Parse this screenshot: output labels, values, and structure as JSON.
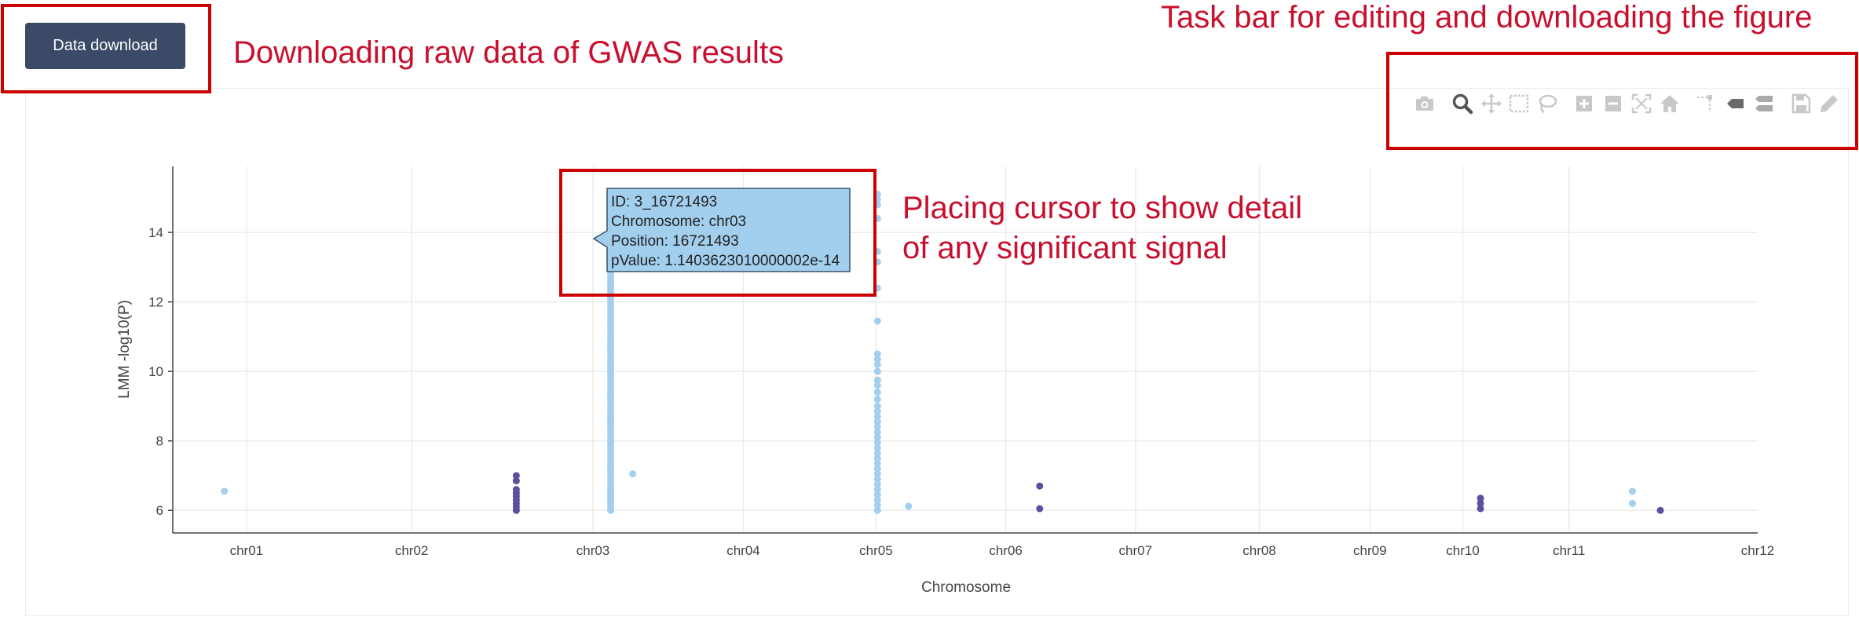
{
  "download_button": {
    "label": "Data download"
  },
  "annotations": {
    "download": "Downloading raw data of GWAS results",
    "taskbar": "Task bar for editing and downloading the figure",
    "cursor_line1": "Placing cursor to show detail",
    "cursor_line2": "of any significant signal"
  },
  "toolbar": {
    "icons": [
      "camera-icon",
      "zoom-icon",
      "pan-icon",
      "box-select-icon",
      "lasso-select-icon",
      "zoom-in-icon",
      "zoom-out-icon",
      "autoscale-icon",
      "reset-axes-icon",
      "spike-lines-icon",
      "hover-closest-icon",
      "hover-compare-icon",
      "save-icon",
      "edit-icon"
    ],
    "active": "zoom-icon"
  },
  "tooltip": {
    "id": "ID: 3_16721493",
    "chromosome": "Chromosome: chr03",
    "position": "Position: 16721493",
    "pvalue": "pValue: 1.1403623010000002e-14"
  },
  "colors": {
    "odd_chr": "#a3cfee",
    "even_chr": "#5b4f9e",
    "button": "#3a4a67",
    "annotation": "#c8102e"
  },
  "chart_data": {
    "type": "scatter",
    "xlabel": "Chromosome",
    "ylabel": "LMM -log10(P)",
    "x_ticks": [
      "chr01",
      "chr02",
      "chr03",
      "chr04",
      "chr05",
      "chr06",
      "chr07",
      "chr08",
      "chr09",
      "chr10",
      "chr11",
      "chr12"
    ],
    "xlim": [
      0.0,
      12.0
    ],
    "ylim": [
      5.35,
      15.9
    ],
    "y_ticks": [
      6,
      8,
      10,
      12,
      14
    ],
    "grid": true,
    "series": [
      {
        "color": "odd",
        "points": [
          [
            0.35,
            6.55
          ],
          [
            2.97,
            6.0
          ],
          [
            2.97,
            6.1
          ],
          [
            2.97,
            6.2
          ],
          [
            2.97,
            6.3
          ],
          [
            2.97,
            6.4
          ],
          [
            2.97,
            6.5
          ],
          [
            2.97,
            6.6
          ],
          [
            2.97,
            6.7
          ],
          [
            2.97,
            6.8
          ],
          [
            2.97,
            6.9
          ],
          [
            2.97,
            7.0
          ],
          [
            2.97,
            7.1
          ],
          [
            2.97,
            7.2
          ],
          [
            2.97,
            7.3
          ],
          [
            2.97,
            7.4
          ],
          [
            2.97,
            7.5
          ],
          [
            2.97,
            7.6
          ],
          [
            2.97,
            7.7
          ],
          [
            2.97,
            7.8
          ],
          [
            2.97,
            7.9
          ],
          [
            2.97,
            8.0
          ],
          [
            2.97,
            8.1
          ],
          [
            2.97,
            8.2
          ],
          [
            2.97,
            8.3
          ],
          [
            2.97,
            8.4
          ],
          [
            2.97,
            8.5
          ],
          [
            2.97,
            8.6
          ],
          [
            2.97,
            8.7
          ],
          [
            2.97,
            8.8
          ],
          [
            2.97,
            8.9
          ],
          [
            2.97,
            9.0
          ],
          [
            2.97,
            9.1
          ],
          [
            2.97,
            9.2
          ],
          [
            2.97,
            9.3
          ],
          [
            2.97,
            9.4
          ],
          [
            2.97,
            9.5
          ],
          [
            2.97,
            9.6
          ],
          [
            2.97,
            9.7
          ],
          [
            2.97,
            9.8
          ],
          [
            2.97,
            9.9
          ],
          [
            2.97,
            10.0
          ],
          [
            2.97,
            10.1
          ],
          [
            2.97,
            10.2
          ],
          [
            2.97,
            10.3
          ],
          [
            2.97,
            10.4
          ],
          [
            2.97,
            10.5
          ],
          [
            2.97,
            10.6
          ],
          [
            2.97,
            10.7
          ],
          [
            2.97,
            10.8
          ],
          [
            2.97,
            10.9
          ],
          [
            2.97,
            11.0
          ],
          [
            2.97,
            11.1
          ],
          [
            2.97,
            11.2
          ],
          [
            2.97,
            11.3
          ],
          [
            2.97,
            11.4
          ],
          [
            2.97,
            11.5
          ],
          [
            2.97,
            11.6
          ],
          [
            2.97,
            11.7
          ],
          [
            2.97,
            11.8
          ],
          [
            2.97,
            11.9
          ],
          [
            2.97,
            12.0
          ],
          [
            2.97,
            12.1
          ],
          [
            2.97,
            12.2
          ],
          [
            2.97,
            12.3
          ],
          [
            2.97,
            12.4
          ],
          [
            2.97,
            12.5
          ],
          [
            2.97,
            12.6
          ],
          [
            2.97,
            12.7
          ],
          [
            2.97,
            12.8
          ],
          [
            2.97,
            12.9
          ],
          [
            2.97,
            13.0
          ],
          [
            2.97,
            13.1
          ],
          [
            2.97,
            13.2
          ],
          [
            2.97,
            13.3
          ],
          [
            2.97,
            13.8
          ],
          [
            2.97,
            13.94
          ],
          [
            3.12,
            7.05
          ],
          [
            4.78,
            6.0
          ],
          [
            4.78,
            6.15
          ],
          [
            4.78,
            6.3
          ],
          [
            4.78,
            6.45
          ],
          [
            4.78,
            6.6
          ],
          [
            4.78,
            6.75
          ],
          [
            4.78,
            6.9
          ],
          [
            4.78,
            7.05
          ],
          [
            4.78,
            7.2
          ],
          [
            4.78,
            7.35
          ],
          [
            4.78,
            7.5
          ],
          [
            4.78,
            7.65
          ],
          [
            4.78,
            7.8
          ],
          [
            4.78,
            7.95
          ],
          [
            4.78,
            8.1
          ],
          [
            4.78,
            8.25
          ],
          [
            4.78,
            8.4
          ],
          [
            4.78,
            8.55
          ],
          [
            4.78,
            8.7
          ],
          [
            4.78,
            8.85
          ],
          [
            4.78,
            9.0
          ],
          [
            4.78,
            9.2
          ],
          [
            4.78,
            9.4
          ],
          [
            4.78,
            9.6
          ],
          [
            4.78,
            9.75
          ],
          [
            4.78,
            10.0
          ],
          [
            4.78,
            10.2
          ],
          [
            4.78,
            10.35
          ],
          [
            4.78,
            10.5
          ],
          [
            4.78,
            11.45
          ],
          [
            4.78,
            12.4
          ],
          [
            4.78,
            13.15
          ],
          [
            4.78,
            13.45
          ],
          [
            4.78,
            14.4
          ],
          [
            4.78,
            14.8
          ],
          [
            4.78,
            14.95
          ],
          [
            4.78,
            15.1
          ],
          [
            4.99,
            6.12
          ],
          [
            9.9,
            6.2
          ],
          [
            9.9,
            6.55
          ]
        ]
      },
      {
        "color": "even",
        "points": [
          [
            2.33,
            6.0
          ],
          [
            2.33,
            6.1
          ],
          [
            2.33,
            6.2
          ],
          [
            2.33,
            6.3
          ],
          [
            2.33,
            6.4
          ],
          [
            2.33,
            6.5
          ],
          [
            2.33,
            6.6
          ],
          [
            2.33,
            6.85
          ],
          [
            2.33,
            7.0
          ],
          [
            5.88,
            6.05
          ],
          [
            5.88,
            6.7
          ],
          [
            8.87,
            6.05
          ],
          [
            8.87,
            6.2
          ],
          [
            8.87,
            6.35
          ],
          [
            10.09,
            6.0
          ]
        ]
      }
    ],
    "hovered_point": [
      2.97,
      13.94
    ]
  }
}
